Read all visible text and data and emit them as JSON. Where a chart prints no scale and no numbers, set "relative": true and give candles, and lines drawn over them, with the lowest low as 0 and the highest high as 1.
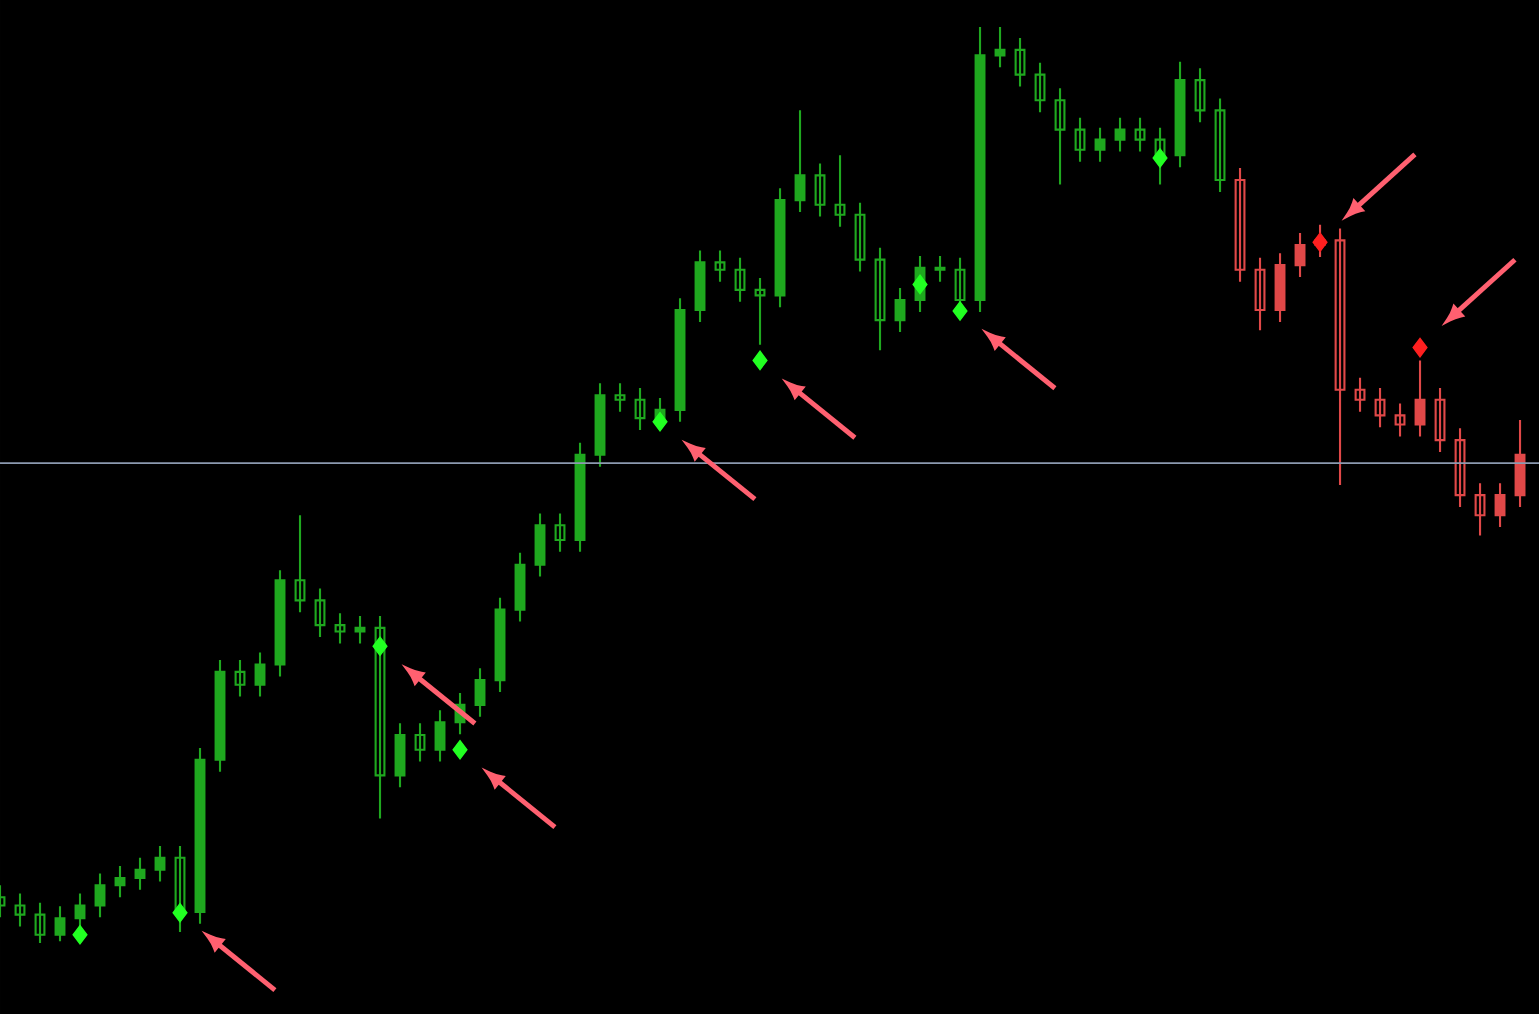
{
  "chart_data": {
    "type": "candlestick",
    "relative": true,
    "categories": [
      null,
      null,
      null,
      null,
      null,
      null,
      null,
      null,
      null,
      null,
      null,
      null,
      null,
      null,
      null,
      null,
      null,
      null,
      null,
      null,
      null,
      null,
      null,
      null,
      null,
      null,
      null,
      null,
      null,
      null,
      null,
      null,
      null,
      null,
      null,
      null,
      null,
      null,
      null,
      null,
      null,
      null,
      null,
      null,
      null,
      null,
      null,
      null,
      null,
      null,
      null,
      null,
      null,
      null,
      null,
      null,
      null,
      null,
      null,
      null,
      null,
      null,
      null,
      null,
      null,
      null,
      null,
      null,
      null,
      null,
      null,
      null,
      null,
      null,
      null,
      null,
      null
    ],
    "ohlc": [
      [
        0.05,
        0.063,
        0.028,
        0.041
      ],
      [
        0.041,
        0.054,
        0.018,
        0.031
      ],
      [
        0.031,
        0.044,
        0.0,
        0.009
      ],
      [
        0.009,
        0.04,
        0.002,
        0.027
      ],
      [
        0.027,
        0.054,
        0.014,
        0.041
      ],
      [
        0.041,
        0.076,
        0.028,
        0.063
      ],
      [
        0.063,
        0.084,
        0.05,
        0.071
      ],
      [
        0.071,
        0.093,
        0.058,
        0.08
      ],
      [
        0.08,
        0.106,
        0.067,
        0.093
      ],
      [
        0.093,
        0.106,
        0.012,
        0.034
      ],
      [
        0.034,
        0.213,
        0.021,
        0.2
      ],
      [
        0.2,
        0.309,
        0.187,
        0.296
      ],
      [
        0.296,
        0.309,
        0.269,
        0.282
      ],
      [
        0.282,
        0.317,
        0.269,
        0.304
      ],
      [
        0.304,
        0.407,
        0.291,
        0.396
      ],
      [
        0.396,
        0.467,
        0.361,
        0.374
      ],
      [
        0.374,
        0.387,
        0.334,
        0.347
      ],
      [
        0.347,
        0.36,
        0.327,
        0.34
      ],
      [
        0.34,
        0.357,
        0.327,
        0.344
      ],
      [
        0.344,
        0.357,
        0.136,
        0.183
      ],
      [
        0.183,
        0.24,
        0.17,
        0.227
      ],
      [
        0.227,
        0.24,
        0.198,
        0.211
      ],
      [
        0.211,
        0.254,
        0.198,
        0.241
      ],
      [
        0.241,
        0.273,
        0.228,
        0.26
      ],
      [
        0.26,
        0.3,
        0.247,
        0.287
      ],
      [
        0.287,
        0.377,
        0.274,
        0.364
      ],
      [
        0.364,
        0.426,
        0.351,
        0.413
      ],
      [
        0.413,
        0.469,
        0.4,
        0.456
      ],
      [
        0.456,
        0.469,
        0.427,
        0.44
      ],
      [
        0.44,
        0.546,
        0.427,
        0.533
      ],
      [
        0.533,
        0.611,
        0.52,
        0.598
      ],
      [
        0.598,
        0.611,
        0.58,
        0.593
      ],
      [
        0.593,
        0.606,
        0.56,
        0.573
      ],
      [
        0.573,
        0.595,
        0.56,
        0.582
      ],
      [
        0.582,
        0.704,
        0.569,
        0.691
      ],
      [
        0.691,
        0.756,
        0.678,
        0.743
      ],
      [
        0.743,
        0.756,
        0.722,
        0.735
      ],
      [
        0.735,
        0.748,
        0.7,
        0.713
      ],
      [
        0.713,
        0.726,
        0.653,
        0.707
      ],
      [
        0.707,
        0.824,
        0.694,
        0.811
      ],
      [
        0.811,
        0.909,
        0.798,
        0.838
      ],
      [
        0.838,
        0.851,
        0.793,
        0.806
      ],
      [
        0.806,
        0.86,
        0.782,
        0.795
      ],
      [
        0.795,
        0.808,
        0.733,
        0.746
      ],
      [
        0.746,
        0.759,
        0.647,
        0.68
      ],
      [
        0.68,
        0.715,
        0.667,
        0.702
      ],
      [
        0.702,
        0.75,
        0.689,
        0.737
      ],
      [
        0.737,
        0.75,
        0.722,
        0.735
      ],
      [
        0.735,
        0.748,
        0.689,
        0.702
      ],
      [
        0.702,
        1.0,
        0.689,
        0.969
      ],
      [
        0.969,
        1.0,
        0.956,
        0.975
      ],
      [
        0.975,
        0.988,
        0.935,
        0.948
      ],
      [
        0.948,
        0.961,
        0.907,
        0.92
      ],
      [
        0.92,
        0.933,
        0.828,
        0.888
      ],
      [
        0.888,
        0.901,
        0.853,
        0.866
      ],
      [
        0.866,
        0.89,
        0.853,
        0.877
      ],
      [
        0.877,
        0.901,
        0.864,
        0.888
      ],
      [
        0.888,
        0.901,
        0.864,
        0.877
      ],
      [
        0.877,
        0.89,
        0.828,
        0.86
      ],
      [
        0.86,
        0.962,
        0.847,
        0.942
      ],
      [
        0.942,
        0.955,
        0.896,
        0.909
      ],
      [
        0.909,
        0.922,
        0.82,
        0.833
      ],
      [
        0.833,
        0.846,
        0.722,
        0.735
      ],
      [
        0.735,
        0.748,
        0.669,
        0.691
      ],
      [
        0.691,
        0.753,
        0.678,
        0.74
      ],
      [
        0.74,
        0.775,
        0.727,
        0.762
      ],
      [
        0.762,
        0.784,
        0.749,
        0.767
      ],
      [
        0.767,
        0.78,
        0.5,
        0.604
      ],
      [
        0.604,
        0.617,
        0.58,
        0.593
      ],
      [
        0.593,
        0.606,
        0.563,
        0.576
      ],
      [
        0.576,
        0.589,
        0.553,
        0.566
      ],
      [
        0.566,
        0.636,
        0.553,
        0.593
      ],
      [
        0.593,
        0.606,
        0.536,
        0.549
      ],
      [
        0.549,
        0.562,
        0.476,
        0.489
      ],
      [
        0.489,
        0.502,
        0.445,
        0.467
      ],
      [
        0.467,
        0.502,
        0.454,
        0.489
      ],
      [
        0.489,
        0.571,
        0.476,
        0.533
      ]
    ],
    "colors": [
      "#1fa81f",
      "#1fa81f",
      "#1fa81f",
      "#1fa81f",
      "#1fa81f",
      "#1fa81f",
      "#1fa81f",
      "#1fa81f",
      "#1fa81f",
      "#1fa81f",
      "#1fa81f",
      "#1fa81f",
      "#1fa81f",
      "#1fa81f",
      "#1fa81f",
      "#1fa81f",
      "#1fa81f",
      "#1fa81f",
      "#1fa81f",
      "#1fa81f",
      "#1fa81f",
      "#1fa81f",
      "#1fa81f",
      "#1fa81f",
      "#1fa81f",
      "#1fa81f",
      "#1fa81f",
      "#1fa81f",
      "#1fa81f",
      "#1fa81f",
      "#1fa81f",
      "#1fa81f",
      "#1fa81f",
      "#1fa81f",
      "#1fa81f",
      "#1fa81f",
      "#1fa81f",
      "#1fa81f",
      "#1fa81f",
      "#1fa81f",
      "#1fa81f",
      "#1fa81f",
      "#1fa81f",
      "#1fa81f",
      "#1fa81f",
      "#1fa81f",
      "#1fa81f",
      "#1fa81f",
      "#1fa81f",
      "#1fa81f",
      "#1fa81f",
      "#1fa81f",
      "#1fa81f",
      "#1fa81f",
      "#1fa81f",
      "#1fa81f",
      "#1fa81f",
      "#1fa81f",
      "#1fa81f",
      "#1fa81f",
      "#1fa81f",
      "#1fa81f",
      "#e04848",
      "#e04848",
      "#e04848",
      "#e04848",
      "#e04848",
      "#e04848",
      "#e04848",
      "#e04848",
      "#e04848",
      "#e04848",
      "#e04848",
      "#e04848",
      "#e04848",
      "#e04848",
      "#e04848"
    ],
    "series": [
      {
        "type": "scatter",
        "color": "#22ff22",
        "marker": "diamond",
        "values": [
          null,
          null,
          null,
          null,
          0.009,
          null,
          null,
          null,
          null,
          0.033,
          null,
          null,
          null,
          null,
          null,
          null,
          null,
          null,
          null,
          0.324,
          null,
          null,
          null,
          0.211,
          null,
          null,
          null,
          null,
          null,
          null,
          null,
          null,
          null,
          0.569,
          null,
          null,
          null,
          null,
          0.636,
          null,
          null,
          null,
          null,
          null,
          null,
          null,
          0.719,
          null,
          0.69,
          null,
          null,
          null,
          null,
          null,
          null,
          null,
          null,
          null,
          0.857,
          null,
          null,
          null,
          null,
          null,
          null,
          null,
          null,
          null,
          null,
          null,
          null,
          null,
          null,
          null,
          null,
          null,
          null
        ]
      },
      {
        "type": "scatter",
        "color": "#ff2020",
        "marker": "diamond",
        "values": [
          null,
          null,
          null,
          null,
          null,
          null,
          null,
          null,
          null,
          null,
          null,
          null,
          null,
          null,
          null,
          null,
          null,
          null,
          null,
          null,
          null,
          null,
          null,
          null,
          null,
          null,
          null,
          null,
          null,
          null,
          null,
          null,
          null,
          null,
          null,
          null,
          null,
          null,
          null,
          null,
          null,
          null,
          null,
          null,
          null,
          null,
          null,
          null,
          null,
          null,
          null,
          null,
          null,
          null,
          null,
          null,
          null,
          null,
          null,
          null,
          null,
          null,
          null,
          null,
          null,
          null,
          0.765,
          null,
          null,
          null,
          null,
          0.65,
          null,
          null,
          null,
          null,
          null
        ]
      }
    ],
    "ref_lines": [
      {
        "axis": "y",
        "value": 0.524,
        "color": "#8c9ab0"
      }
    ]
  }
}
